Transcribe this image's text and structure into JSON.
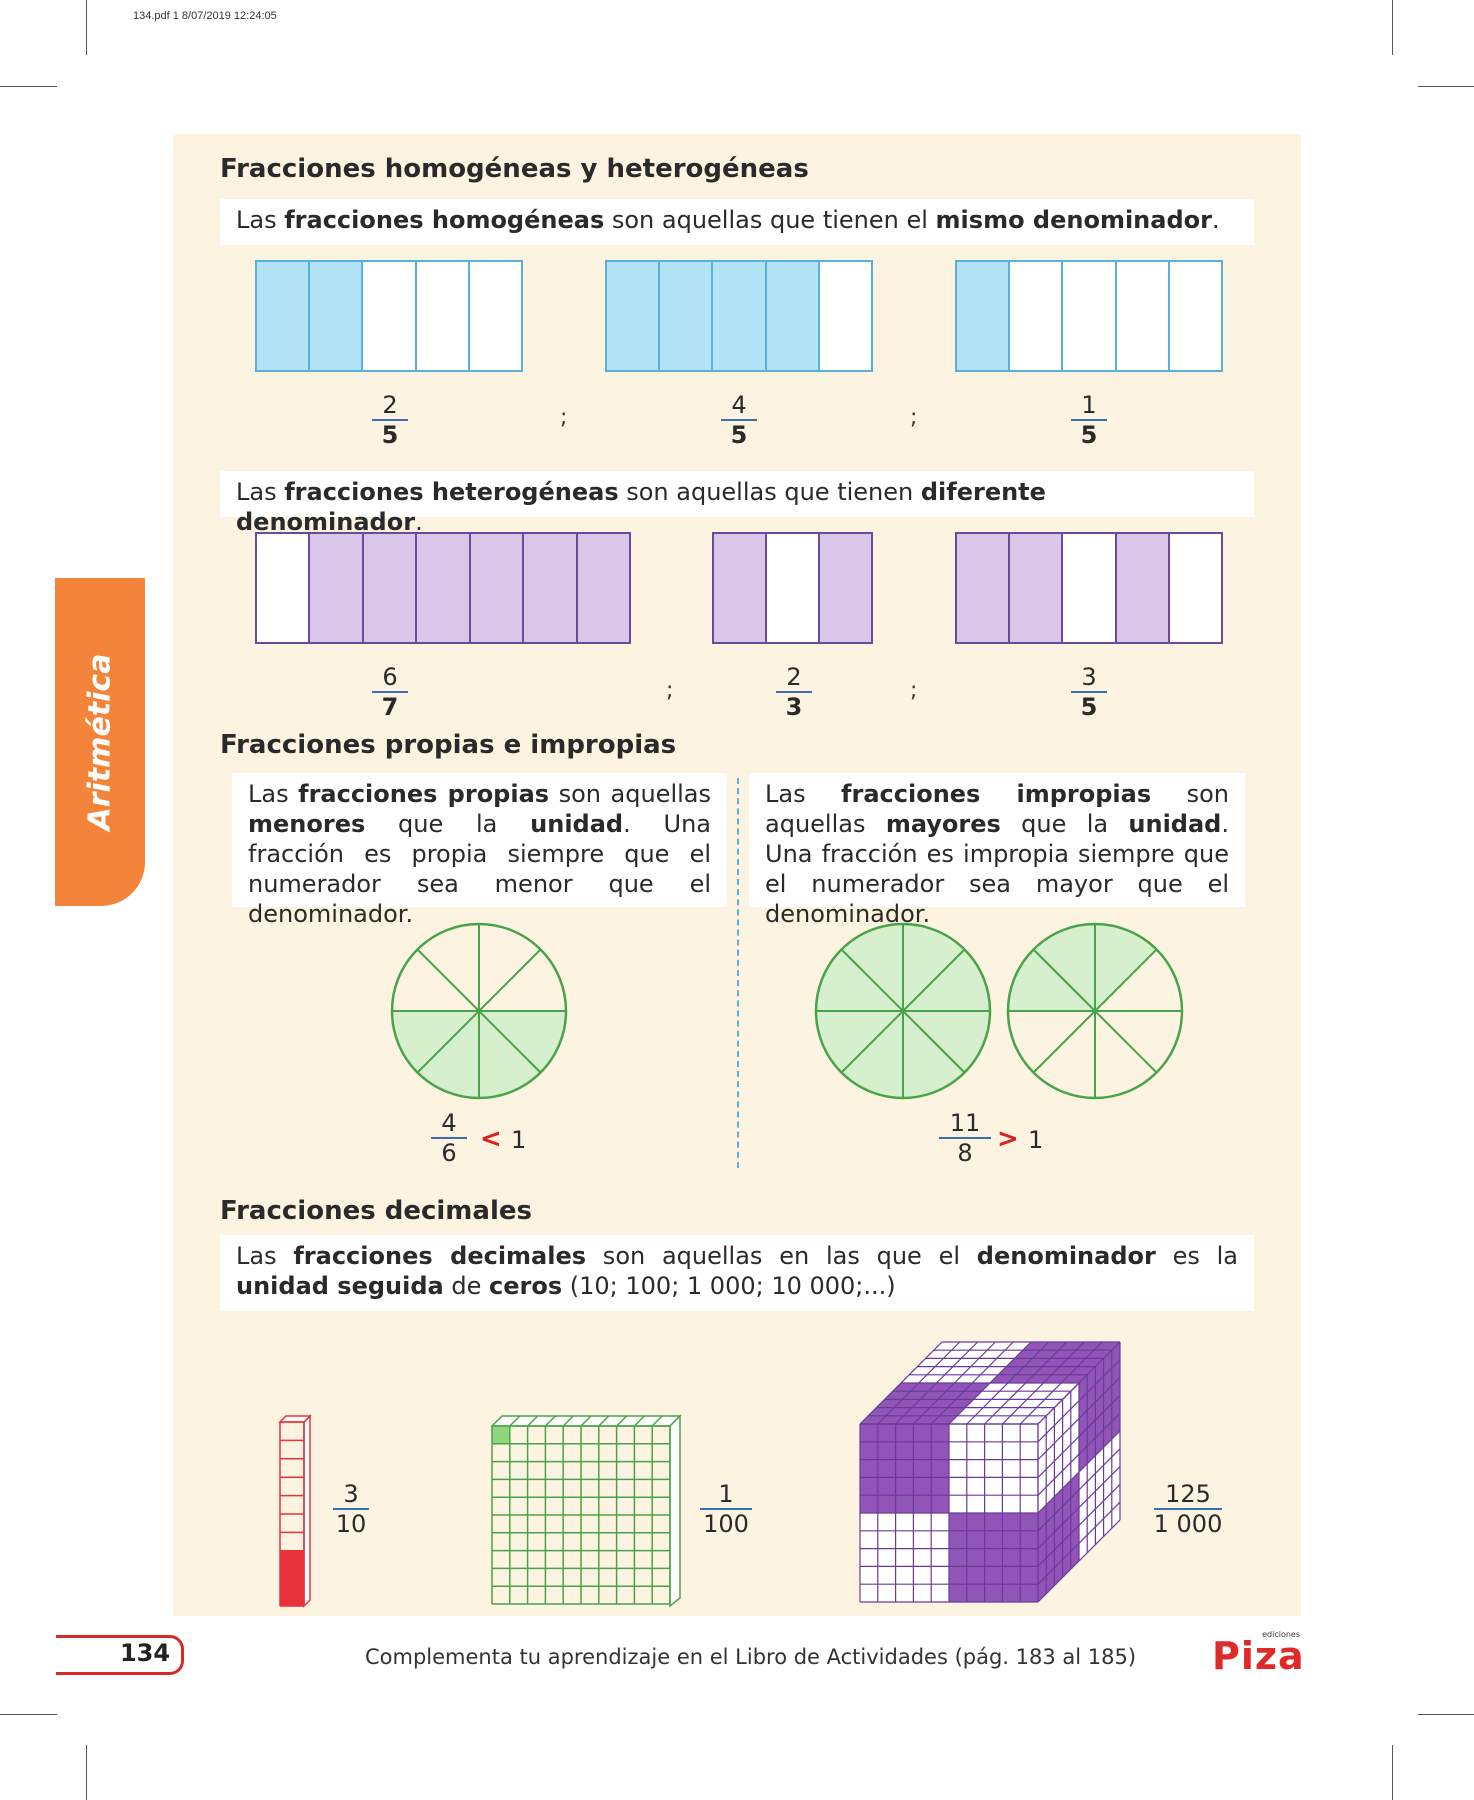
{
  "print_info": "134.pdf   1   8/07/2019   12:24:05",
  "side_tab": "Aritmética",
  "homogeneas": {
    "heading": "Fracciones homogéneas y heterogéneas",
    "text": [
      "Las ",
      "fracciones homogéneas",
      " son aquellas que tienen el ",
      "mismo denominador",
      "."
    ],
    "fractions": [
      {
        "num": "2",
        "den": "5",
        "parts": 5,
        "shaded": 2
      },
      {
        "num": "4",
        "den": "5",
        "parts": 5,
        "shaded": 4
      },
      {
        "num": "1",
        "den": "5",
        "parts": 5,
        "shaded": 1
      }
    ],
    "separator": ";"
  },
  "heterogeneas": {
    "text": [
      "Las ",
      "fracciones heterogéneas",
      " son aquellas que tienen ",
      "diferente denominador",
      "."
    ],
    "fractions": [
      {
        "num": "6",
        "den": "7",
        "parts": 7,
        "shaded": 6
      },
      {
        "num": "2",
        "den": "3",
        "parts": 3,
        "shaded": 2
      },
      {
        "num": "3",
        "den": "5",
        "parts": 5,
        "shaded": 3
      }
    ],
    "separator": ";"
  },
  "propias": {
    "heading": "Fracciones propias e impropias",
    "propias_text": [
      "Las ",
      "fracciones propias",
      " son aquellas ",
      "menores",
      " que la ",
      "unidad",
      ". Una fracción es propia siempre que el numerador sea menor que el denominador."
    ],
    "impropias_text": [
      "Las ",
      "fracciones impropias",
      " son aquellas ",
      "mayores",
      " que la ",
      "unidad",
      ". Una fracción es impropia siempre que el numerador sea mayor que el denominador."
    ],
    "propia_example": {
      "num": "4",
      "den": "6",
      "symbol": "<",
      "one": "1"
    },
    "impropia_example": {
      "num": "11",
      "den": "8",
      "symbol": ">",
      "one": "1"
    }
  },
  "decimales": {
    "heading": "Fracciones decimales",
    "text": [
      "Las ",
      "fracciones decimales",
      " son aquellas en las que el ",
      "denominador",
      " es la ",
      "unidad seguida",
      " de ",
      "ceros",
      " (10; 100; 1 000; 10 000;...)"
    ],
    "examples": [
      {
        "num": "3",
        "den": "10"
      },
      {
        "num": "1",
        "den": "100"
      },
      {
        "num": "125",
        "den": "1 000"
      }
    ]
  },
  "footer": {
    "page_number": "134",
    "text": "Complementa tu aprendizaje en el Libro de Actividades (pág. 183 al 185)",
    "logo_small": "ediciones",
    "logo": "Piza"
  },
  "colors": {
    "panel": "#fdf3e1",
    "blue": "#b3e3f7",
    "purple": "#d9c6e8",
    "green": "#d6efcc",
    "red": "#e8323a",
    "orange_tab": "#f3843a"
  }
}
